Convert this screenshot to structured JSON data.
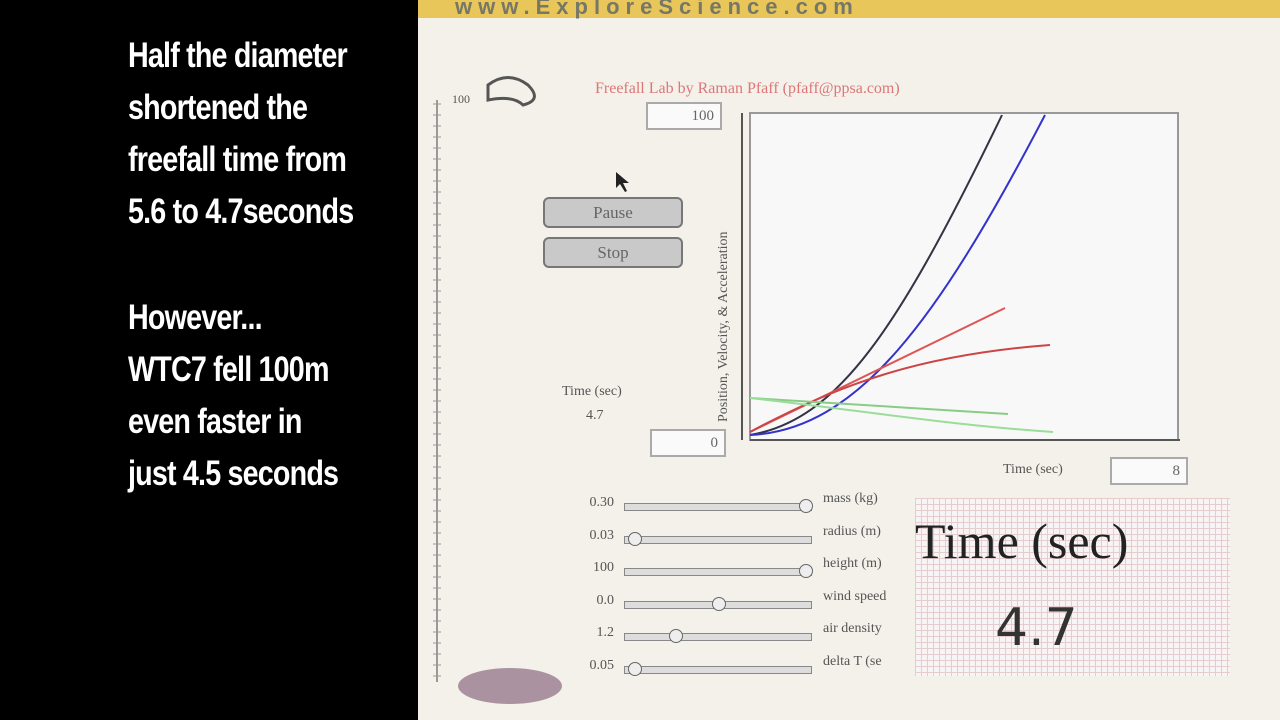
{
  "caption": {
    "paragraphs": [
      [
        "Half the diameter",
        "shortened the",
        "freefall time from",
        "5.6 to 4.7seconds"
      ],
      [
        "However...",
        "WTC7 fell 100m",
        "even faster in",
        "just 4.5 seconds"
      ]
    ]
  },
  "header": {
    "url": "www.ExploreScience.com"
  },
  "app": {
    "title": "Freefall Lab by Raman Pfaff (pfaff@ppsa.com)",
    "scale_top": "100",
    "buttons": [
      "Pause",
      "Stop"
    ],
    "time_label": "Time (sec)",
    "time_value": "4.7",
    "plot": {
      "y_label": "Position, Velocity, & Acceleration",
      "y_max": "100",
      "y_min": "0",
      "x_label": "Time (sec)",
      "x_max": "8"
    },
    "sliders": [
      {
        "value": "0.30",
        "label": "mass (kg)"
      },
      {
        "value": "0.03",
        "label": "radius (m)"
      },
      {
        "value": "100",
        "label": "height (m)"
      },
      {
        "value": "0.0",
        "label": "wind speed"
      },
      {
        "value": "1.2",
        "label": "air density"
      },
      {
        "value": "0.05",
        "label": "delta T (se"
      }
    ],
    "display": {
      "label": "Time (sec)",
      "value": "4.7"
    }
  }
}
